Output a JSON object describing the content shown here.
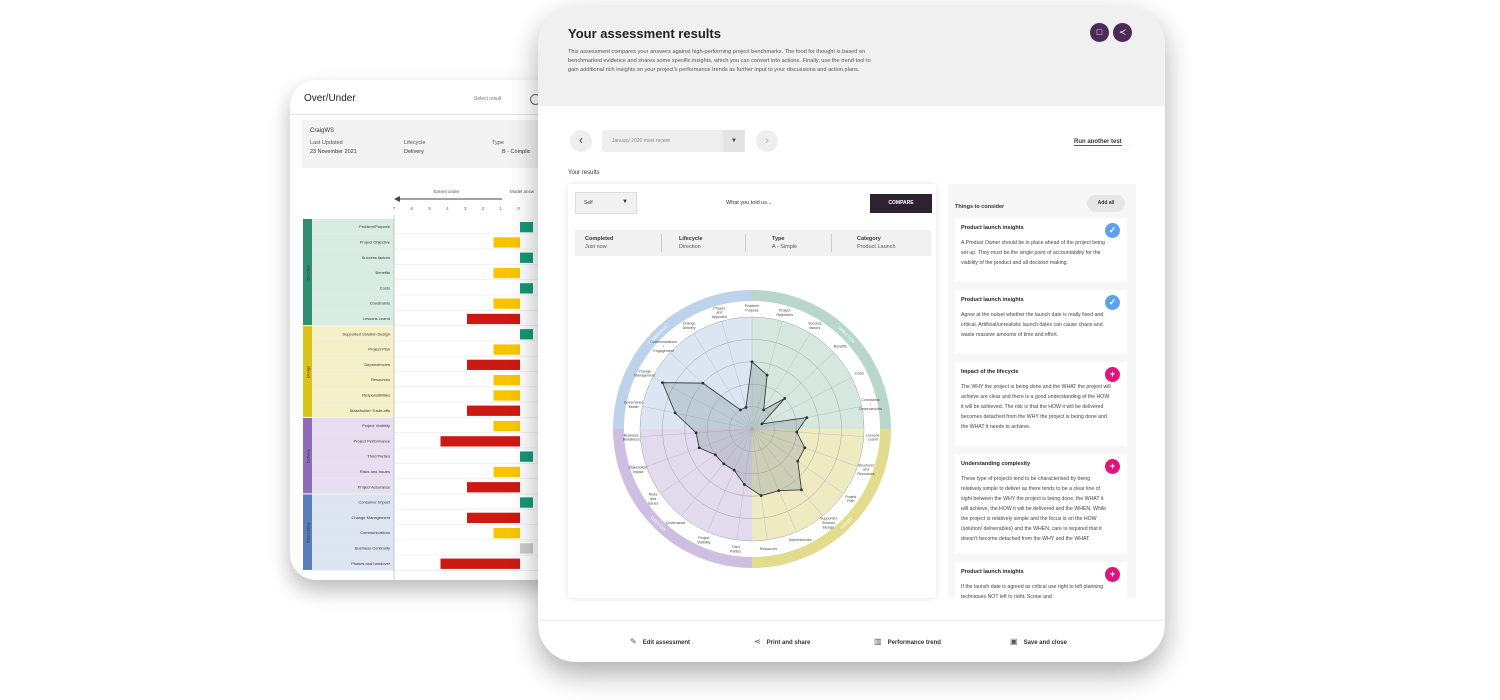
{
  "back_window": {
    "title": "Over/Under",
    "select_label": "Select result",
    "project": {
      "name": "CraigWS",
      "last_updated_label": "Last Updated",
      "last_updated_value": "23 November 2021",
      "lifecycle_label": "Lifecycle",
      "lifecycle_value": "Delivery",
      "type_label": "Type",
      "type_value": "B - Complic"
    },
    "axis_left_label": "Extent under",
    "axis_right_label": "Model answ",
    "axis_ticks": [
      "7",
      "6",
      "5",
      "4",
      "3",
      "2",
      "1",
      "0"
    ],
    "groups": [
      {
        "name": "Direction",
        "color": "#2f8f6e",
        "light": "#d9ece4"
      },
      {
        "name": "Design",
        "color": "#d9c21a",
        "light": "#f4f0c7"
      },
      {
        "name": "Delivery",
        "color": "#8e6cb9",
        "light": "#e7def1"
      },
      {
        "name": "Embedding",
        "color": "#5a7fb8",
        "light": "#dce5f1"
      }
    ],
    "rows": [
      {
        "label": "Problem/Purpose",
        "group": 0,
        "value": 0,
        "color": "#139a77"
      },
      {
        "label": "Project Objective",
        "group": 0,
        "value": 1,
        "color": "#f6c400"
      },
      {
        "label": "Success factors",
        "group": 0,
        "value": 0,
        "color": "#139a77"
      },
      {
        "label": "Benefits",
        "group": 0,
        "value": 1,
        "color": "#f6c400"
      },
      {
        "label": "Costs",
        "group": 0,
        "value": 0,
        "color": "#139a77"
      },
      {
        "label": "Constraints",
        "group": 0,
        "value": 1,
        "color": "#f6c400"
      },
      {
        "label": "Lessons Learnt",
        "group": 0,
        "value": 2,
        "color": "#cc1a12"
      },
      {
        "label": "Supported Solution Design",
        "group": 1,
        "value": 0,
        "color": "#139a77"
      },
      {
        "label": "Project Plan",
        "group": 1,
        "value": 1,
        "color": "#f6c400"
      },
      {
        "label": "Dependencies",
        "group": 1,
        "value": 2,
        "color": "#cc1a12"
      },
      {
        "label": "Resources",
        "group": 1,
        "value": 1,
        "color": "#f6c400"
      },
      {
        "label": "Responsibilities",
        "group": 1,
        "value": 1,
        "color": "#f6c400"
      },
      {
        "label": "Stakeholder Trade-offs",
        "group": 1,
        "value": 2,
        "color": "#cc1a12"
      },
      {
        "label": "Project Visibility",
        "group": 2,
        "value": 1,
        "color": "#f6c400"
      },
      {
        "label": "Project Performance",
        "group": 2,
        "value": 3,
        "color": "#cc1a12"
      },
      {
        "label": "Third Parties",
        "group": 2,
        "value": 0,
        "color": "#139a77"
      },
      {
        "label": "Risks and Issues",
        "group": 2,
        "value": 1,
        "color": "#f6c400"
      },
      {
        "label": "Project Assurance",
        "group": 2,
        "value": 2,
        "color": "#cc1a12"
      },
      {
        "label": "Consumer Impact",
        "group": 3,
        "value": 0,
        "color": "#139a77"
      },
      {
        "label": "Change Management",
        "group": 3,
        "value": 2,
        "color": "#cc1a12"
      },
      {
        "label": "Communications",
        "group": 3,
        "value": 1,
        "color": "#f6c400"
      },
      {
        "label": "Business Continuity",
        "group": 3,
        "value": 0,
        "color": "#cccccc"
      },
      {
        "label": "Phases and handover",
        "group": 3,
        "value": 3,
        "color": "#cc1a12"
      }
    ]
  },
  "front_window": {
    "title": "Your assessment results",
    "description": "This assessment compares your answers against high-performing project benchmarks. The food for thought is based on benchmarked evidence and shares some specific insights, which you can convert into actions. Finally, use the trend tool to gain additional rich insights on your project's performance trends as further input to your discussions and action plans.",
    "comment_icon": "speech-bubble-icon",
    "share_icon": "share-icon",
    "result_dropdown": "January 2020 most recent",
    "run_another": "Run another test",
    "your_results": "Your results",
    "select_value": "Self",
    "what_you_told": "What you told us...",
    "compare_button": "COMPARE",
    "meta": [
      {
        "key": "Completed",
        "value": "Just now"
      },
      {
        "key": "Lifecycle",
        "value": "Direction"
      },
      {
        "key": "Type",
        "value": "A - Simple"
      },
      {
        "key": "Category",
        "value": "Product Launch"
      }
    ],
    "things_to_consider": "Things to consider",
    "add_all": "Add all",
    "cards": [
      {
        "title": "Product launch insights",
        "icon": "check",
        "body": "A Product Owner should be in place ahead of the project being set up. They must be the single point of accountability for the viability of the product and all decision making."
      },
      {
        "title": "Product launch insights",
        "icon": "check",
        "body": "Agree at the outset whether the launch date is really fixed and critical. Artificial/unrealistic launch dates can cause chaos and waste massive amounts of time and effort."
      },
      {
        "title": "Impact of the lifecycle",
        "icon": "plus",
        "body": "The WHY the project is being done and the WHAT the project will achieve are clear and there is a good understanding of the HOW it will be achieved. The risk is that the HOW it will be delivered becomes detached from the WHY the project is being done and the WHAT it needs to achieve."
      },
      {
        "title": "Understanding complexity",
        "icon": "plus",
        "body": "These type of projects tend to be characterised by being relatively simple to deliver as there tends to be a clear line of sight between the WHY the project is being done, the WHAT it will achieve, the HOW it will be delivered and the WHEN. While the project is relatively simple and the focus is on the HOW (solution/ deliverables) and the WHEN, care is required that it doesn't become detached from the WHY and the WHAT."
      },
      {
        "title": "Product launch insights",
        "icon": "plus",
        "body": "If the launch date is agreed as critical use right to left planning techniques NOT left to right. Scope and"
      }
    ],
    "footer": [
      {
        "label": "Edit assessment",
        "icon": "pencil-icon",
        "glyph": "✎"
      },
      {
        "label": "Print and share",
        "icon": "share-icon",
        "glyph": "⋖"
      },
      {
        "label": "Performance trend",
        "icon": "bar-chart-icon",
        "glyph": "▥"
      },
      {
        "label": "Save and close",
        "icon": "save-icon",
        "glyph": "▣"
      }
    ]
  },
  "chart_data": {
    "type": "radar",
    "quadrant_labels": [
      "DIRECTION",
      "DESIGN",
      "DELIVERY",
      "EMBEDDING"
    ],
    "quadrant_colors": [
      "#cfe3d9",
      "#ece8b6",
      "#ddd3ea",
      "#d5e2f0"
    ],
    "ring_colors": [
      "#b9d7c8",
      "#e2dc8f",
      "#cdbfe2",
      "#bdd3ec"
    ],
    "max": 5,
    "axes": [
      "Problem/ Purpose",
      "Project Objectives",
      "Success factors",
      "Benefits",
      "Costs",
      "Constraints / Dependencies",
      "Lessons Learnt",
      "Structures and Resources",
      "Project Plan",
      "Supported Solution Design",
      "Dependencies",
      "Resources",
      "Third Parties",
      "Project Visibility",
      "Governance",
      "Risks and Issues",
      "Stakeholder Impact",
      "Business Readiness",
      "Governance Model",
      "Change Management",
      "Communications / Engagement",
      "Change Delivery",
      "Phases and Approach"
    ],
    "values": [
      3,
      2.5,
      1,
      2,
      0.5,
      2.5,
      2,
      2.5,
      2.5,
      3.5,
      3,
      3,
      2.5,
      2,
      2,
      2,
      2.5,
      2.5,
      3.5,
      4.5,
      3,
      1,
      1
    ]
  }
}
